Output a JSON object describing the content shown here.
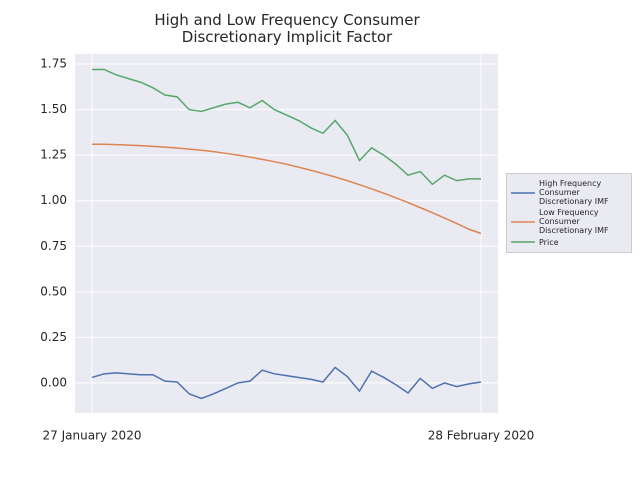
{
  "chart_data": {
    "type": "line",
    "title": "High and Low Frequency Consumer Discretionary Implicit Factor",
    "categories": [
      "27 January 2020",
      null,
      null,
      null,
      null,
      null,
      null,
      null,
      null,
      null,
      null,
      null,
      null,
      null,
      null,
      null,
      null,
      null,
      null,
      null,
      null,
      null,
      null,
      null,
      null,
      null,
      null,
      null,
      null,
      null,
      null,
      null,
      "28 February 2020"
    ],
    "series": [
      {
        "name": "High Frequency Consumer Discretionary IMF",
        "color": "#4c72b0",
        "values": [
          0.03,
          0.05,
          0.055,
          0.05,
          0.045,
          0.045,
          0.01,
          0.005,
          -0.06,
          -0.085,
          -0.06,
          -0.03,
          0,
          0.01,
          0.07,
          0.05,
          0.04,
          0.03,
          0.02,
          0.005,
          0.085,
          0.035,
          -0.045,
          0.065,
          0.03,
          -0.01,
          -0.055,
          0.025,
          -0.03,
          0,
          -0.02,
          -0.005,
          0.005
        ]
      },
      {
        "name": "Low Frequency Consumer Discretionary IMF",
        "color": "#dd8452",
        "values": [
          1.31,
          1.31,
          1.308,
          1.305,
          1.302,
          1.298,
          1.294,
          1.289,
          1.283,
          1.277,
          1.269,
          1.26,
          1.25,
          1.239,
          1.227,
          1.214,
          1.2,
          1.184,
          1.167,
          1.149,
          1.13,
          1.11,
          1.088,
          1.065,
          1.041,
          1.016,
          0.99,
          0.962,
          0.934,
          0.905,
          0.875,
          0.844,
          0.82
        ]
      },
      {
        "name": "Price",
        "color": "#55a868",
        "values": [
          1.72,
          1.72,
          1.69,
          1.67,
          1.65,
          1.62,
          1.58,
          1.57,
          1.5,
          1.49,
          1.51,
          1.53,
          1.54,
          1.51,
          1.55,
          1.5,
          1.47,
          1.44,
          1.4,
          1.37,
          1.44,
          1.36,
          1.22,
          1.29,
          1.25,
          1.2,
          1.14,
          1.16,
          1.09,
          1.14,
          1.11,
          1.12,
          1.12
        ]
      }
    ],
    "ylim": [
      -0.165,
      1.805
    ],
    "yticks": [
      {
        "value": 0,
        "label": "0.00"
      },
      {
        "value": 0.25,
        "label": "0.25"
      },
      {
        "value": 0.5,
        "label": "0.50"
      },
      {
        "value": 0.75,
        "label": "0.75"
      },
      {
        "value": 1,
        "label": "1.00"
      },
      {
        "value": 1.25,
        "label": "1.25"
      },
      {
        "value": 1.5,
        "label": "1.50"
      },
      {
        "value": 1.75,
        "label": "1.75"
      }
    ],
    "grid": true,
    "legend": "right"
  }
}
